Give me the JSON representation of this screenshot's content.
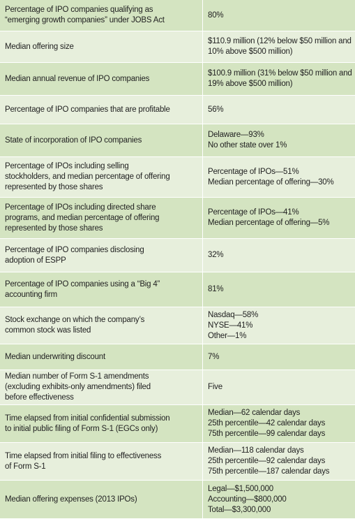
{
  "table": {
    "rows": [
      {
        "label": [
          "Percentage of IPO companies qualifying as",
          "“emerging growth companies” under JOBS Act"
        ],
        "value": [
          "80%"
        ]
      },
      {
        "label": [
          "Median offering size"
        ],
        "value": [
          "$110.9 million (12% below $50 million and",
          "10% above $500 million)"
        ]
      },
      {
        "label": [
          "Median annual revenue of IPO companies"
        ],
        "value": [
          "$100.9 million (31% below $50 million and",
          "19% above $500 million)"
        ]
      },
      {
        "label": [
          "Percentage of IPO companies that are profitable"
        ],
        "value": [
          "56%"
        ]
      },
      {
        "label": [
          "State of incorporation of IPO companies"
        ],
        "value": [
          "Delaware—93%",
          "No other state over 1%"
        ]
      },
      {
        "label": [
          "Percentage of IPOs including selling",
          "stockholders, and median percentage of offering",
          "represented by those shares"
        ],
        "value": [
          "Percentage of IPOs—51%",
          "Median percentage of offering—30%"
        ]
      },
      {
        "label": [
          "Percentage of IPOs including directed share",
          "programs, and median percentage of offering",
          "represented by those shares"
        ],
        "value": [
          "Percentage of IPOs—41%",
          "Median percentage of offering—5%"
        ]
      },
      {
        "label": [
          "Percentage of IPO companies disclosing",
          "adoption of ESPP"
        ],
        "value": [
          "32%"
        ]
      },
      {
        "label": [
          "Percentage of IPO companies using a “Big 4”",
          "accounting firm"
        ],
        "value": [
          "81%"
        ]
      },
      {
        "label": [
          "Stock exchange on which the company’s",
          "common stock was listed"
        ],
        "value": [
          "Nasdaq—58%",
          "NYSE—41%",
          "Other—1%"
        ]
      },
      {
        "label": [
          "Median underwriting discount"
        ],
        "value": [
          "7%"
        ]
      },
      {
        "label": [
          "Median number of Form S-1 amendments",
          "(excluding exhibits-only amendments) filed",
          "before effectiveness"
        ],
        "value": [
          "Five"
        ]
      },
      {
        "label": [
          "Time elapsed from initial confidential submission",
          "to initial public filing of Form S-1 (EGCs only)"
        ],
        "value": [
          "Median—62 calendar days",
          "25th percentile—42 calendar days",
          "75th percentile—99 calendar days"
        ]
      },
      {
        "label": [
          "Time elapsed from initial filing to effectiveness",
          "of Form S-1"
        ],
        "value": [
          "Median—118 calendar days",
          "25th percentile—92 calendar days",
          "75th percentile—187 calendar days"
        ]
      },
      {
        "label": [
          "Median offering expenses (2013 IPOs)"
        ],
        "value": [
          "Legal—$1,500,000",
          "Accounting—$800,000",
          "Total—$3,300,000"
        ]
      }
    ]
  }
}
